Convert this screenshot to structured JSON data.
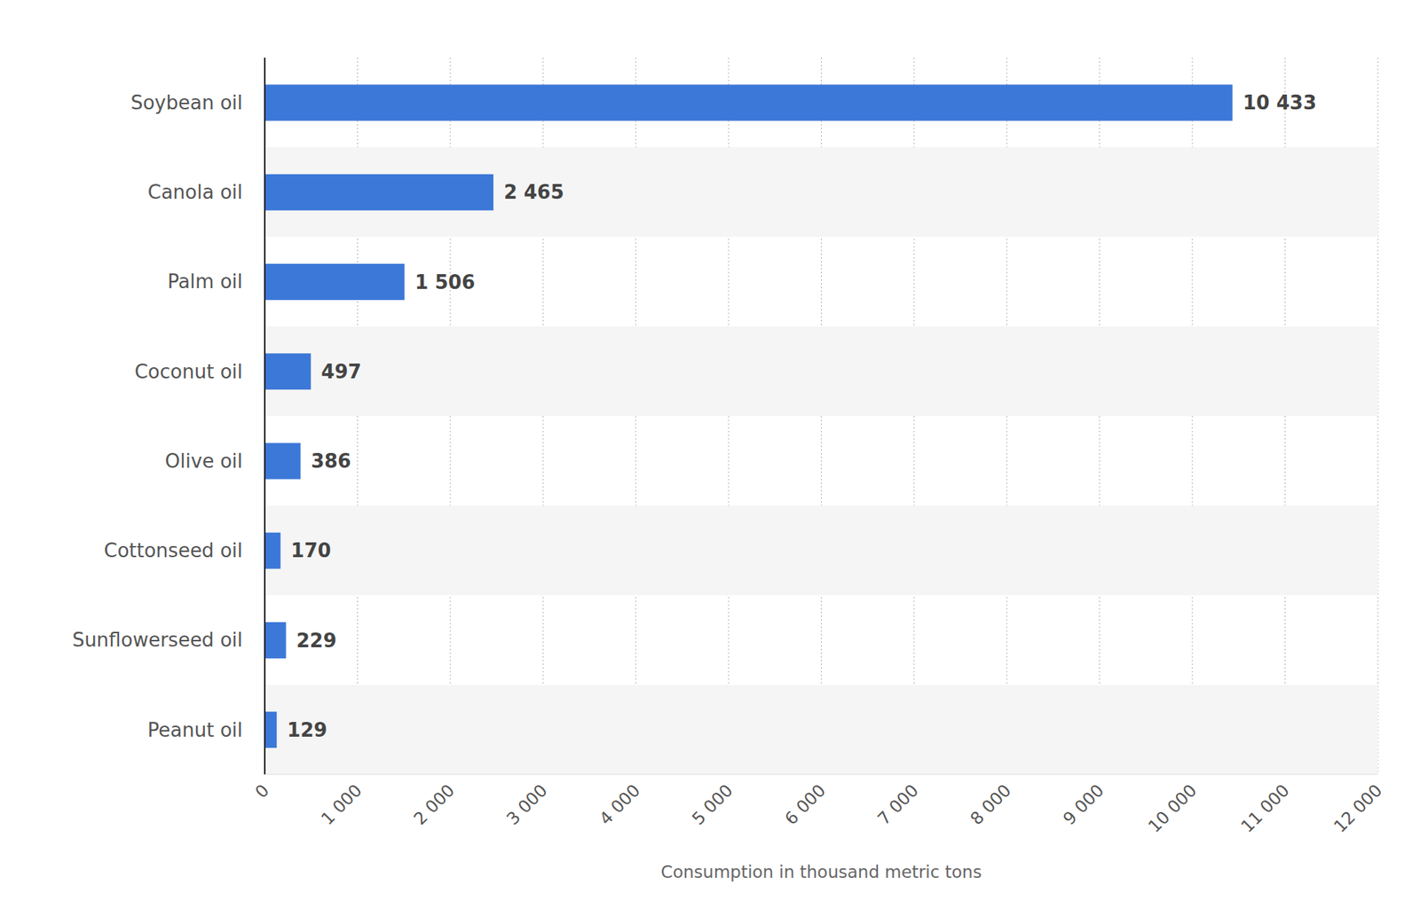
{
  "chart_data": {
    "type": "bar",
    "orientation": "horizontal",
    "x_label": "Consumption in thousand metric tons",
    "categories": [
      "Soybean oil",
      "Canola oil",
      "Palm oil",
      "Coconut oil",
      "Olive oil",
      "Cottonseed oil",
      "Sunflowerseed oil",
      "Peanut oil"
    ],
    "values": [
      10433,
      2465,
      1506,
      497,
      386,
      170,
      229,
      129
    ],
    "value_labels": [
      "10 433",
      "2 465",
      "1 506",
      "497",
      "386",
      "170",
      "229",
      "129"
    ],
    "data_labels": true,
    "color": "#3c78d8",
    "xlim": [
      0,
      12000
    ],
    "xticks": [
      0,
      {
        "value": 1000,
        "label": "1 000"
      },
      {
        "value": 2000,
        "label": "2 000"
      },
      {
        "value": 3000,
        "label": "3 000"
      },
      {
        "value": 4000,
        "label": "4 000"
      },
      {
        "value": 5000,
        "label": "5 000"
      },
      {
        "value": 6000,
        "label": "6 000"
      },
      {
        "value": 7000,
        "label": "7 000"
      },
      {
        "value": 8000,
        "label": "8 000"
      },
      {
        "value": 9000,
        "label": "9 000"
      },
      {
        "value": 10000,
        "label": "10 000"
      },
      {
        "value": 11000,
        "label": "11 000"
      },
      {
        "value": 12000,
        "label": "12 000"
      }
    ],
    "grid": true
  }
}
